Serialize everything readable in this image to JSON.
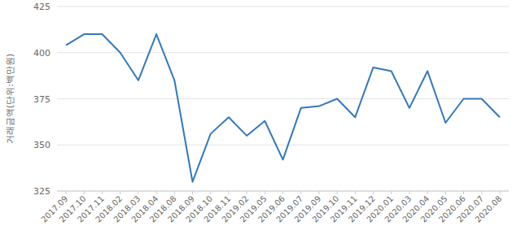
{
  "chart_data": {
    "type": "line",
    "y_label": "거래금액(단위:백만원)",
    "categories": [
      "2017.09",
      "2017.10",
      "2017.11",
      "2018.02",
      "2018.03",
      "2018.04",
      "2018.08",
      "2018.09",
      "2018.10",
      "2018.11",
      "2019.02",
      "2019.05",
      "2019.06",
      "2019.07",
      "2019.09",
      "2019.10",
      "2019.11",
      "2019.12",
      "2020.01",
      "2020.03",
      "2020.04",
      "2020.05",
      "2020.06",
      "2020.07",
      "2020.08"
    ],
    "values": [
      404,
      410,
      410,
      400,
      385,
      410,
      385,
      330,
      356,
      365,
      355,
      363,
      342,
      370,
      371,
      375,
      365,
      392,
      390,
      370,
      390,
      362,
      375,
      375,
      365
    ],
    "color": "#3478b8",
    "ylim": [
      325,
      425
    ],
    "yticks": [
      325,
      350,
      375,
      400,
      425
    ],
    "grid": true
  }
}
